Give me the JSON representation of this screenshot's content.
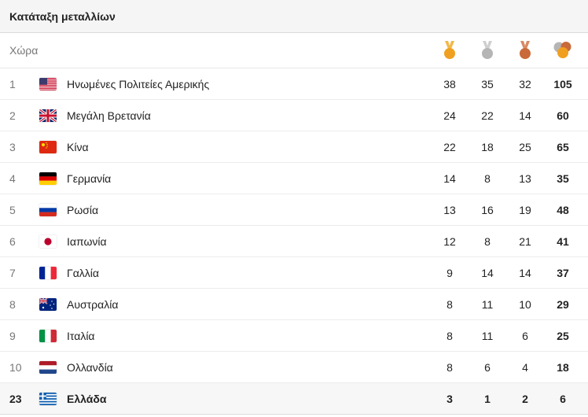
{
  "header": {
    "title": "Κατάταξη μεταλλίων"
  },
  "columns": {
    "country_label": "Χώρα",
    "icons": [
      "gold-medal-icon",
      "silver-medal-icon",
      "bronze-medal-icon",
      "total-medals-icon"
    ]
  },
  "colors": {
    "gold": "#f0a020",
    "silver": "#b5b5b5",
    "bronze": "#c96a3a"
  },
  "rows": [
    {
      "rank": "1",
      "country": "Ηνωμένες Πολιτείες Αμερικής",
      "flag": "usa",
      "gold": "38",
      "silver": "35",
      "bronze": "32",
      "total": "105"
    },
    {
      "rank": "2",
      "country": "Μεγάλη Βρετανία",
      "flag": "uk",
      "gold": "24",
      "silver": "22",
      "bronze": "14",
      "total": "60"
    },
    {
      "rank": "3",
      "country": "Κίνα",
      "flag": "china",
      "gold": "22",
      "silver": "18",
      "bronze": "25",
      "total": "65"
    },
    {
      "rank": "4",
      "country": "Γερμανία",
      "flag": "germany",
      "gold": "14",
      "silver": "8",
      "bronze": "13",
      "total": "35"
    },
    {
      "rank": "5",
      "country": "Ρωσία",
      "flag": "russia",
      "gold": "13",
      "silver": "16",
      "bronze": "19",
      "total": "48"
    },
    {
      "rank": "6",
      "country": "Ιαπωνία",
      "flag": "japan",
      "gold": "12",
      "silver": "8",
      "bronze": "21",
      "total": "41"
    },
    {
      "rank": "7",
      "country": "Γαλλία",
      "flag": "france",
      "gold": "9",
      "silver": "14",
      "bronze": "14",
      "total": "37"
    },
    {
      "rank": "8",
      "country": "Αυστραλία",
      "flag": "australia",
      "gold": "8",
      "silver": "11",
      "bronze": "10",
      "total": "29"
    },
    {
      "rank": "9",
      "country": "Ιταλία",
      "flag": "italy",
      "gold": "8",
      "silver": "11",
      "bronze": "6",
      "total": "25"
    },
    {
      "rank": "10",
      "country": "Ολλανδία",
      "flag": "netherlands",
      "gold": "8",
      "silver": "6",
      "bronze": "4",
      "total": "18"
    },
    {
      "rank": "23",
      "country": "Ελλάδα",
      "flag": "greece",
      "gold": "3",
      "silver": "1",
      "bronze": "2",
      "total": "6"
    }
  ]
}
